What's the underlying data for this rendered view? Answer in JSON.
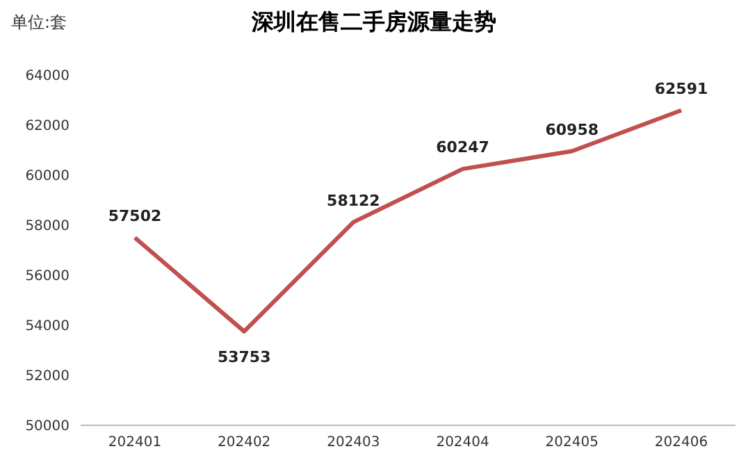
{
  "chart_data": {
    "type": "line",
    "title": "深圳在售二手房源量走势",
    "ylabel": "单位:套",
    "categories": [
      "202401",
      "202402",
      "202403",
      "202404",
      "202405",
      "202406"
    ],
    "series": [
      {
        "color": "#c0504d",
        "values": [
          57502,
          53753,
          58122,
          60247,
          60958,
          62591
        ]
      }
    ],
    "ylim": [
      50000,
      64000
    ],
    "yticks": [
      50000,
      52000,
      54000,
      56000,
      58000,
      60000,
      62000,
      64000
    ],
    "grid": false,
    "legend": false,
    "data_labels": true,
    "marker": "none",
    "line_style": "solid"
  }
}
